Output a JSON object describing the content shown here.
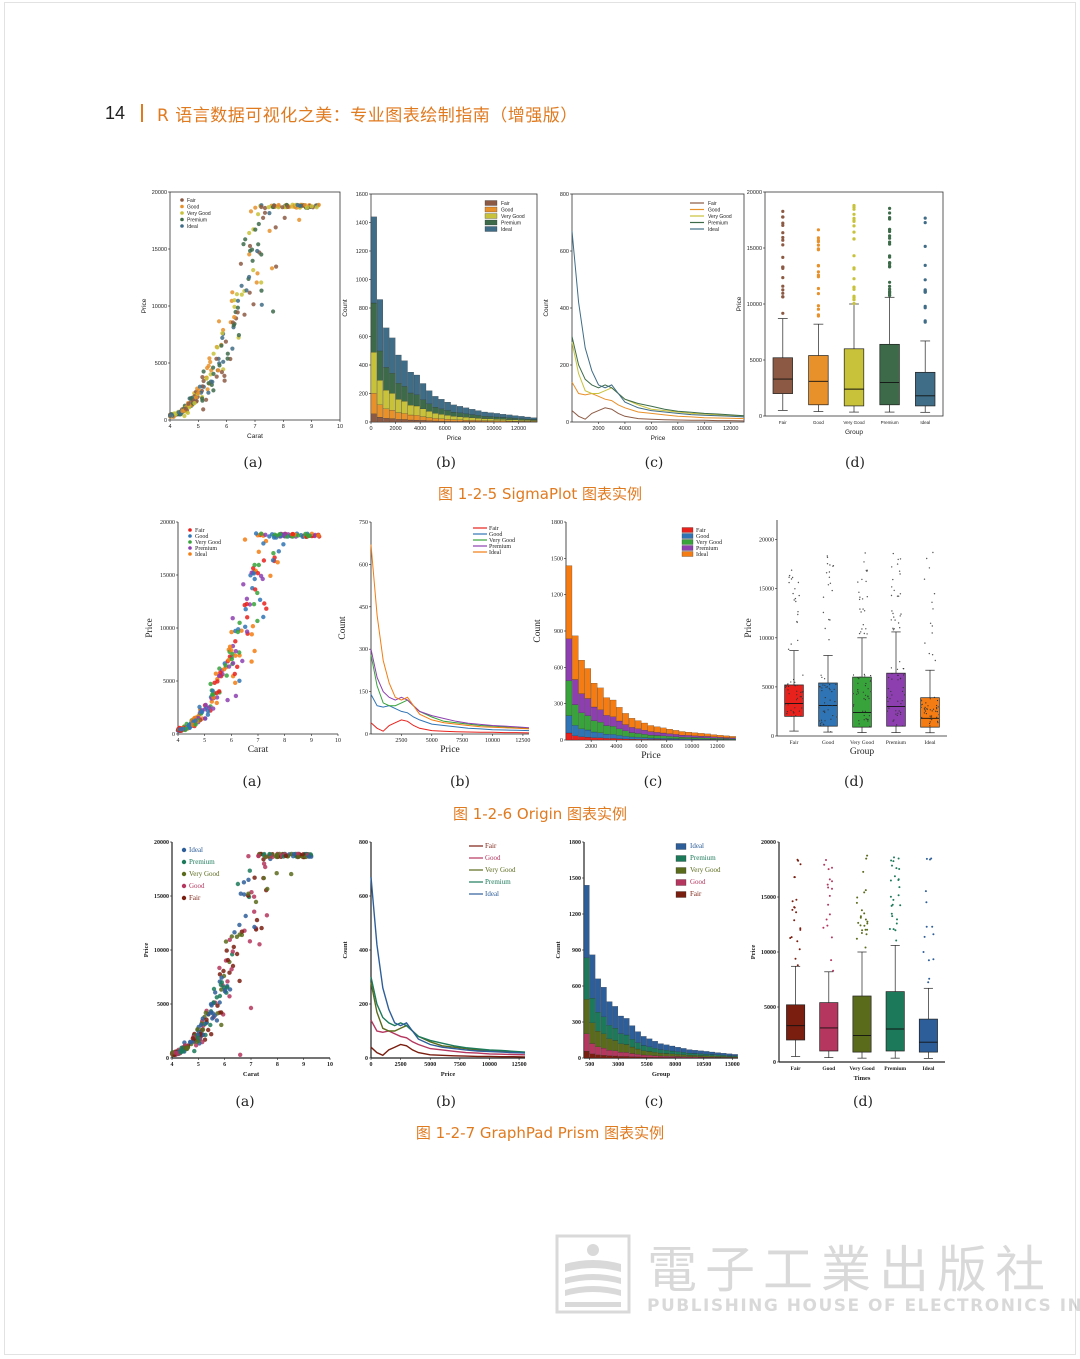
{
  "header": {
    "page_number": "14",
    "book_title": "R 语言数据可视化之美：专业图表绘制指南（增强版）"
  },
  "figures": [
    {
      "caption": "图 1-2-5    SigmaPlot 图表实例",
      "style": "sigmaplot",
      "panel_captions": [
        "(a)",
        "(b)",
        "(c)",
        "(d)"
      ]
    },
    {
      "caption": "图 1-2-6    Origin 图表实例",
      "style": "origin",
      "panel_captions": [
        "(a)",
        "(b)",
        "(c)",
        "(d)"
      ]
    },
    {
      "caption": "图 1-2-7    GraphPad Prism 图表实例",
      "style": "prism",
      "panel_captions": [
        "(a)",
        "(b)",
        "(c)",
        "(d)"
      ]
    }
  ],
  "palettes": {
    "sigmaplot": {
      "Fair": "#8c5a44",
      "Good": "#e8902a",
      "Very Good": "#c8c23a",
      "Premium": "#3d6b4a",
      "Ideal": "#3f6c86"
    },
    "origin": {
      "Fair": "#e8211c",
      "Good": "#2f74b5",
      "Very Good": "#37a33a",
      "Premium": "#8d3fb0",
      "Ideal": "#f47c12"
    },
    "prism": {
      "Fair": "#7a1e10",
      "Good": "#b5365e",
      "Very Good": "#5a6b1c",
      "Premium": "#1c7a5a",
      "Ideal": "#2e5e9a"
    }
  },
  "chart_data": [
    {
      "figure": "1-2-5",
      "panel": "a",
      "type": "scatter",
      "xlabel": "Carat",
      "ylabel": "Price",
      "xlim": [
        4,
        10
      ],
      "ylim": [
        0,
        20000
      ],
      "xticks": [
        "4",
        "5",
        "6",
        "7",
        "8",
        "9",
        "10"
      ],
      "yticks": [
        "0",
        "5000",
        "10000",
        "15000",
        "20000"
      ],
      "legend": [
        "Fair",
        "Good",
        "Very Good",
        "Premium",
        "Ideal"
      ],
      "legend_position": "top-left",
      "relationship": "price rises exponentially with carat; points from 4 to ~9.3 carat, 300 to ~18900 price"
    },
    {
      "figure": "1-2-5",
      "panel": "b",
      "type": "bar",
      "stacked": true,
      "xlabel": "Price",
      "ylabel": "Count",
      "xlim": [
        0,
        13500
      ],
      "ylim": [
        0,
        1600
      ],
      "xticks": [
        "0",
        "2000",
        "4000",
        "6000",
        "8000",
        "10000",
        "12000"
      ],
      "yticks": [
        "0",
        "200",
        "400",
        "600",
        "800",
        "1000",
        "1200",
        "1400",
        "1600"
      ],
      "legend": [
        "Fair",
        "Good",
        "Very Good",
        "Premium",
        "Ideal"
      ],
      "legend_position": "top-right",
      "bin_width": 500,
      "bin_starts": [
        0,
        500,
        1000,
        1500,
        2000,
        2500,
        3000,
        3500,
        4000,
        4500,
        5000,
        5500,
        6000,
        6500,
        7000,
        7500,
        8000,
        8500,
        9000,
        9500,
        10000,
        10500,
        11000,
        11500,
        12000,
        12500,
        13000
      ],
      "totals": [
        1440,
        860,
        660,
        590,
        470,
        430,
        350,
        330,
        270,
        220,
        180,
        160,
        140,
        120,
        110,
        100,
        90,
        80,
        70,
        65,
        60,
        55,
        50,
        45,
        40,
        35,
        30
      ]
    },
    {
      "figure": "1-2-5",
      "panel": "c",
      "type": "line",
      "xlabel": "Price",
      "ylabel": "Count",
      "xlim": [
        0,
        13000
      ],
      "ylim": [
        0,
        800
      ],
      "xticks": [
        "2000",
        "4000",
        "6000",
        "8000",
        "10000",
        "12000"
      ],
      "yticks": [
        "0",
        "200",
        "400",
        "600",
        "800"
      ],
      "legend": [
        "Fair",
        "Good",
        "Very Good",
        "Premium",
        "Ideal"
      ],
      "legend_position": "top-right",
      "x": [
        0,
        500,
        1000,
        1500,
        2000,
        2500,
        3000,
        3500,
        4000,
        5000,
        6000,
        7000,
        8000,
        9000,
        10000,
        11000,
        12000,
        13000
      ],
      "series": [
        {
          "name": "Fair",
          "values": [
            40,
            20,
            10,
            30,
            40,
            50,
            45,
            30,
            20,
            12,
            10,
            8,
            7,
            6,
            6,
            5,
            5,
            4
          ]
        },
        {
          "name": "Good",
          "values": [
            140,
            100,
            95,
            100,
            90,
            80,
            75,
            60,
            50,
            35,
            30,
            25,
            20,
            18,
            15,
            14,
            13,
            12
          ]
        },
        {
          "name": "Very Good",
          "values": [
            280,
            170,
            110,
            100,
            100,
            110,
            120,
            100,
            80,
            60,
            45,
            40,
            35,
            30,
            28,
            25,
            22,
            20
          ]
        },
        {
          "name": "Premium",
          "values": [
            300,
            200,
            150,
            130,
            120,
            130,
            120,
            100,
            80,
            65,
            55,
            45,
            38,
            34,
            30,
            28,
            25,
            22
          ]
        },
        {
          "name": "Ideal",
          "values": [
            670,
            420,
            260,
            180,
            130,
            120,
            130,
            100,
            70,
            50,
            40,
            35,
            30,
            26,
            24,
            22,
            20,
            18
          ]
        }
      ]
    },
    {
      "figure": "1-2-5",
      "panel": "d",
      "type": "box",
      "xlabel": "Group",
      "ylabel": "Price",
      "ylim": [
        0,
        20000
      ],
      "yticks": [
        "0",
        "5000",
        "10000",
        "15000",
        "20000"
      ],
      "categories": [
        "Fair",
        "Good",
        "Very Good",
        "Premium",
        "Ideal"
      ],
      "boxes": [
        {
          "min": 500,
          "q1": 2000,
          "median": 3300,
          "q3": 5200,
          "max": 8700
        },
        {
          "min": 400,
          "q1": 1000,
          "median": 3100,
          "q3": 5400,
          "max": 8200
        },
        {
          "min": 350,
          "q1": 900,
          "median": 2400,
          "q3": 6000,
          "max": 10000
        },
        {
          "min": 350,
          "q1": 1000,
          "median": 3000,
          "q3": 6400,
          "max": 10600
        },
        {
          "min": 330,
          "q1": 900,
          "median": 1800,
          "q3": 3900,
          "max": 6700
        }
      ]
    },
    {
      "figure": "1-2-6",
      "panel": "a",
      "type": "scatter",
      "xlabel": "Carat",
      "ylabel": "Price",
      "xlim": [
        4,
        10
      ],
      "ylim": [
        0,
        20000
      ],
      "xticks": [
        "4",
        "5",
        "6",
        "7",
        "8",
        "9",
        "10"
      ],
      "yticks": [
        "0",
        "5000",
        "10000",
        "15000",
        "20000"
      ],
      "legend": [
        "Fair",
        "Good",
        "Very Good",
        "Premium",
        "Ideal"
      ],
      "legend_position": "top-left"
    },
    {
      "figure": "1-2-6",
      "panel": "b",
      "type": "line",
      "xlabel": "Price",
      "ylabel": "Count",
      "xlim": [
        0,
        13000
      ],
      "ylim": [
        0,
        750
      ],
      "xticks": [
        "2500",
        "5000",
        "7500",
        "10000",
        "12500"
      ],
      "yticks": [
        "0",
        "150",
        "300",
        "450",
        "600",
        "750"
      ],
      "legend": [
        "Fair",
        "Good",
        "Very Good",
        "Premium",
        "Ideal"
      ],
      "legend_position": "top-right"
    },
    {
      "figure": "1-2-6",
      "panel": "c",
      "type": "bar",
      "stacked": true,
      "xlabel": "Price",
      "ylabel": "Count",
      "xlim": [
        0,
        13500
      ],
      "ylim": [
        0,
        1800
      ],
      "xticks": [
        "2000",
        "4000",
        "6000",
        "8000",
        "10000",
        "12000"
      ],
      "yticks": [
        "0",
        "300",
        "600",
        "900",
        "1200",
        "1500",
        "1800"
      ],
      "legend": [
        "Fair",
        "Good",
        "Very Good",
        "Premium",
        "Ideal"
      ],
      "legend_position": "top-right"
    },
    {
      "figure": "1-2-6",
      "panel": "d",
      "type": "box",
      "xlabel": "Group",
      "ylabel": "Price",
      "ylim": [
        0,
        22000
      ],
      "yticks": [
        "0",
        "5000",
        "10000",
        "15000",
        "20000"
      ],
      "categories": [
        "Fair",
        "Good",
        "Very Good",
        "Premium",
        "Ideal"
      ],
      "jittered_points": true
    },
    {
      "figure": "1-2-7",
      "panel": "a",
      "type": "scatter",
      "xlabel": "Carat",
      "ylabel": "Price",
      "xlim": [
        4,
        10
      ],
      "ylim": [
        0,
        20000
      ],
      "xticks": [
        "4",
        "5",
        "6",
        "7",
        "8",
        "9",
        "10"
      ],
      "yticks": [
        "0",
        "5000",
        "10000",
        "15000",
        "20000"
      ],
      "legend": [
        "Ideal",
        "Premium",
        "Very Good",
        "Good",
        "Fair"
      ],
      "legend_position": "top-left"
    },
    {
      "figure": "1-2-7",
      "panel": "b",
      "type": "line",
      "xlabel": "Price",
      "ylabel": "Count",
      "xlim": [
        0,
        13000
      ],
      "ylim": [
        0,
        800
      ],
      "xticks": [
        "0",
        "2500",
        "5000",
        "7500",
        "10000",
        "12500"
      ],
      "yticks": [
        "0",
        "200",
        "400",
        "600",
        "800"
      ],
      "legend": [
        "Fair",
        "Good",
        "Very Good",
        "Premium",
        "Ideal"
      ],
      "legend_position": "top-right"
    },
    {
      "figure": "1-2-7",
      "panel": "c",
      "type": "bar",
      "stacked": true,
      "xlabel": "Group",
      "ylabel": "Count",
      "xlim": [
        0,
        13500
      ],
      "ylim": [
        0,
        1800
      ],
      "xticks": [
        "500",
        "3000",
        "5500",
        "8000",
        "10500",
        "13000"
      ],
      "yticks": [
        "0",
        "300",
        "600",
        "900",
        "1200",
        "1500",
        "1800"
      ],
      "legend": [
        "Ideal",
        "Premium",
        "Very Good",
        "Good",
        "Fair"
      ],
      "legend_position": "top-right"
    },
    {
      "figure": "1-2-7",
      "panel": "d",
      "type": "box",
      "xlabel": "Times",
      "ylabel": "Price",
      "ylim": [
        0,
        20000
      ],
      "yticks": [
        "0",
        "5000",
        "10000",
        "15000",
        "20000"
      ],
      "categories": [
        "Fair",
        "Good",
        "Very Good",
        "Premium",
        "Ideal"
      ]
    }
  ],
  "watermark": {
    "cn": "電子工業出版社",
    "en": "PUBLISHING HOUSE OF ELECTRONICS INDUSTRY"
  }
}
